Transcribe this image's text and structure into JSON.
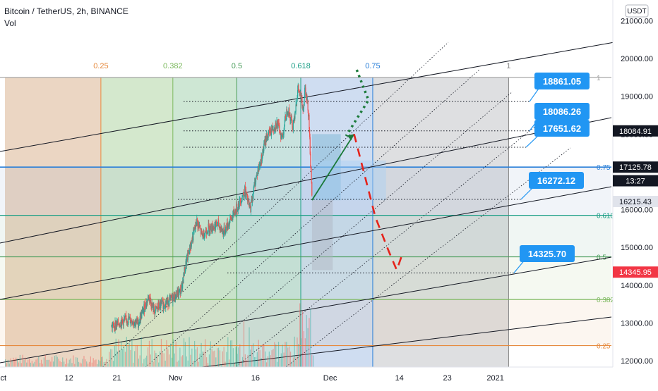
{
  "header": {
    "symbol_line": "Bitcoin / TetherUS, 2h, BINANCE",
    "volume_label": "Vol"
  },
  "currency": "USDT",
  "colors": {
    "up": "#26a69a",
    "down": "#ef5350",
    "label_blue": "#2196f3",
    "arrow_red": "#e5231b",
    "arrow_green": "#1b7a3a",
    "price_dark": "#131722",
    "price_red": "#f23645"
  },
  "chart_data": {
    "type": "candlestick",
    "symbol": "Bitcoin / TetherUS",
    "timeframe": "2h",
    "exchange": "BINANCE",
    "y_axis": {
      "range": [
        11950,
        21600
      ],
      "ticks": [
        {
          "value": 21000,
          "label": "21000.00"
        },
        {
          "value": 20000,
          "label": "20000.00"
        },
        {
          "value": 19000,
          "label": "19000.00"
        },
        {
          "value": 18000,
          "label": "18000.00"
        },
        {
          "value": 16000,
          "label": "16000.00"
        },
        {
          "value": 15000,
          "label": "15000.00"
        },
        {
          "value": 14000,
          "label": "14000.00"
        },
        {
          "value": 13000,
          "label": "13000.00"
        },
        {
          "value": 12000,
          "label": "12000.00"
        }
      ]
    },
    "x_axis": {
      "ticks": [
        {
          "day": 0,
          "label": "Oct"
        },
        {
          "day": 12,
          "label": "12"
        },
        {
          "day": 21,
          "label": "21"
        },
        {
          "day": 32,
          "label": "Nov"
        },
        {
          "day": 47,
          "label": "16"
        },
        {
          "day": 61,
          "label": "Dec"
        },
        {
          "day": 74,
          "label": "14"
        },
        {
          "day": 83,
          "label": "23"
        },
        {
          "day": 92,
          "label": "2021"
        }
      ]
    },
    "price_series": {
      "days": [
        20,
        23,
        25,
        26,
        27,
        28,
        29,
        31,
        33,
        34,
        36,
        37,
        38,
        40,
        41,
        43,
        45,
        46,
        47,
        48,
        49,
        51,
        52,
        53,
        54,
        55,
        56,
        56.3,
        57,
        57.6
      ],
      "prices": [
        12900,
        13100,
        13000,
        13350,
        13700,
        13300,
        13450,
        13600,
        13850,
        14600,
        15700,
        15300,
        15500,
        15600,
        15400,
        15900,
        16500,
        16000,
        16800,
        17300,
        17900,
        18300,
        17900,
        18700,
        18200,
        19200,
        18700,
        19300,
        18500,
        16230
      ]
    },
    "fib_time_zones": [
      {
        "label": "0.25",
        "day": 18,
        "color": "#e68a3e"
      },
      {
        "label": "0.382",
        "day": 31.5,
        "color": "#7cb95e"
      },
      {
        "label": "0.5",
        "day": 43.5,
        "color": "#4a9d5b"
      },
      {
        "label": "0.618",
        "day": 55.5,
        "color": "#1b9e86"
      },
      {
        "label": "0.75",
        "day": 69,
        "color": "#2a7fd8"
      },
      {
        "label": "1",
        "day": 94.5,
        "color": "#888888"
      }
    ],
    "fib_price_levels": [
      {
        "label": "1",
        "price": 19500,
        "color": "#9e9e9e"
      },
      {
        "label": "0.75",
        "price": 17125.78,
        "color": "#2a7fd8"
      },
      {
        "label": "0.618",
        "price": 15850,
        "color": "#1b9e86"
      },
      {
        "label": "0.5",
        "price": 14750,
        "color": "#4a9d5b"
      },
      {
        "label": "0.382",
        "price": 13620,
        "color": "#7cb95e"
      },
      {
        "label": "0.25",
        "price": 12400,
        "color": "#e68a3e"
      }
    ],
    "target_labels": [
      {
        "text": "18861.05",
        "price": 18861.05
      },
      {
        "text": "18086.26",
        "price": 18086.26
      },
      {
        "text": "17651.62",
        "price": 17651.62
      },
      {
        "text": "16272.12",
        "price": 16272.12
      },
      {
        "text": "14325.70",
        "price": 14325.7
      }
    ],
    "price_tags": [
      {
        "text": "18084.91",
        "price": 18084.91,
        "bg": "#131722",
        "fg": "#ffffff"
      },
      {
        "text": "17125.78",
        "price": 17125.78,
        "bg": "#131722",
        "fg": "#ffffff"
      },
      {
        "text": "13:27",
        "price": 16765,
        "bg": "#131722",
        "fg": "#ffffff"
      },
      {
        "text": "16215.43",
        "price": 16215.43,
        "bg": "#e0e3eb",
        "fg": "#131722"
      },
      {
        "text": "14345.95",
        "price": 14345.95,
        "bg": "#f23645",
        "fg": "#ffffff"
      }
    ],
    "projections": {
      "green_solid": [
        {
          "day": 57.6,
          "price": 16250
        },
        {
          "day": 65.5,
          "price": 18000
        }
      ],
      "green_dotted": [
        {
          "day": 66,
          "price": 19700
        },
        {
          "day": 68.2,
          "price": 18900
        }
      ],
      "red_dashed": [
        {
          "day": 65.5,
          "price": 18000
        },
        {
          "day": 67.5,
          "price": 16900
        },
        {
          "day": 69.5,
          "price": 15800
        },
        {
          "day": 72,
          "price": 14900
        },
        {
          "day": 73.5,
          "price": 14400
        },
        {
          "day": 74.5,
          "price": 14800
        }
      ]
    },
    "grid": false,
    "legend": "none"
  }
}
